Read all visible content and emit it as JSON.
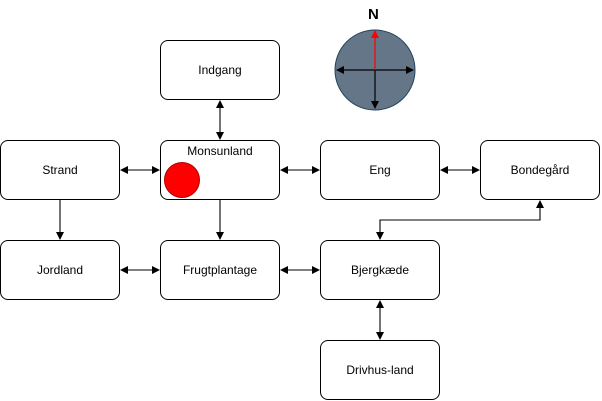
{
  "diagram": {
    "nodes": [
      {
        "id": "indgang",
        "label": "Indgang"
      },
      {
        "id": "strand",
        "label": "Strand"
      },
      {
        "id": "monsunland",
        "label": "Monsunland"
      },
      {
        "id": "eng",
        "label": "Eng"
      },
      {
        "id": "bondegaard",
        "label": "Bondegård"
      },
      {
        "id": "jordland",
        "label": "Jordland"
      },
      {
        "id": "frugtplantage",
        "label": "Frugtplantage"
      },
      {
        "id": "bjergkaede",
        "label": "Bjergkæde"
      },
      {
        "id": "drivhusland",
        "label": "Drivhus-land"
      }
    ],
    "edges": [
      {
        "from": "indgang",
        "to": "monsunland",
        "direction": "both"
      },
      {
        "from": "strand",
        "to": "monsunland",
        "direction": "both"
      },
      {
        "from": "monsunland",
        "to": "eng",
        "direction": "both"
      },
      {
        "from": "eng",
        "to": "bondegaard",
        "direction": "both"
      },
      {
        "from": "strand",
        "to": "jordland",
        "direction": "forward"
      },
      {
        "from": "monsunland",
        "to": "frugtplantage",
        "direction": "forward"
      },
      {
        "from": "jordland",
        "to": "frugtplantage",
        "direction": "both"
      },
      {
        "from": "frugtplantage",
        "to": "bjergkaede",
        "direction": "both"
      },
      {
        "from": "bondegaard",
        "to": "bjergkaede",
        "direction": "both"
      },
      {
        "from": "bjergkaede",
        "to": "drivhusland",
        "direction": "both"
      }
    ],
    "position_marker": {
      "at": "monsunland",
      "color": "#ff0000"
    },
    "compass": {
      "north_label": "N",
      "face_color": "#647687",
      "north_color": "#ff0000"
    }
  }
}
